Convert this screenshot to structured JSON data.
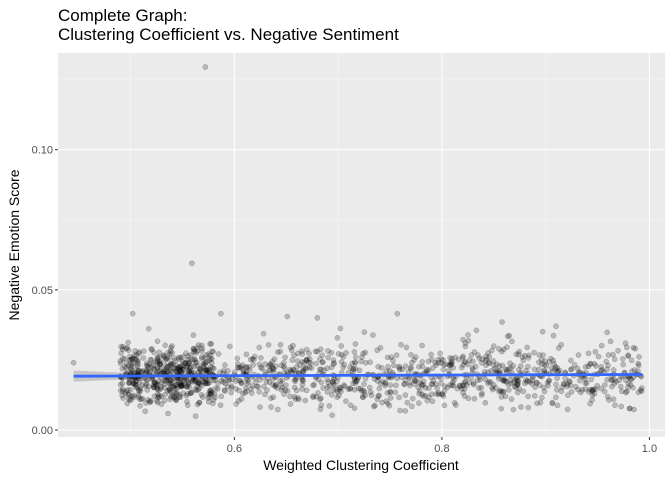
{
  "chart_data": {
    "type": "scatter",
    "title_lines": [
      "Complete Graph:",
      "Clustering Coefficient vs. Negative Sentiment"
    ],
    "xlabel": "Weighted Clustering Coefficient",
    "ylabel": "Negative Emotion Score",
    "xlim": [
      0.43,
      1.015
    ],
    "ylim": [
      -0.0025,
      0.1345
    ],
    "x_ticks": [
      {
        "value": 0.6,
        "label": "0.6"
      },
      {
        "value": 0.8,
        "label": "0.8"
      },
      {
        "value": 1.0,
        "label": "1.0"
      }
    ],
    "y_ticks": [
      {
        "value": 0.0,
        "label": "0.00"
      },
      {
        "value": 0.05,
        "label": "0.05"
      },
      {
        "value": 0.1,
        "label": "0.10"
      }
    ],
    "grid": true,
    "legend": "none",
    "point_color": "#000000",
    "point_opacity": 0.22,
    "trend_line": {
      "type": "linear",
      "color": "#3366FF",
      "x": [
        0.445,
        0.993
      ],
      "y": [
        0.0192,
        0.0198
      ],
      "ci_color": "#999999"
    },
    "highlighted_points": [
      {
        "x": 0.572,
        "y": 0.1295
      },
      {
        "x": 0.559,
        "y": 0.0595
      },
      {
        "x": 0.445,
        "y": 0.024
      },
      {
        "x": 0.502,
        "y": 0.0415
      },
      {
        "x": 0.587,
        "y": 0.0415
      },
      {
        "x": 0.757,
        "y": 0.0415
      },
      {
        "x": 0.68,
        "y": 0.04
      },
      {
        "x": 0.651,
        "y": 0.0405
      },
      {
        "x": 0.858,
        "y": 0.0385
      },
      {
        "x": 0.91,
        "y": 0.037
      }
    ],
    "bulk_points": {
      "count": 1400,
      "x_range": [
        0.49,
        0.993
      ],
      "y_center": 0.0195,
      "y_spread": 0.0055,
      "y_min": 0.004,
      "y_max": 0.039
    }
  }
}
